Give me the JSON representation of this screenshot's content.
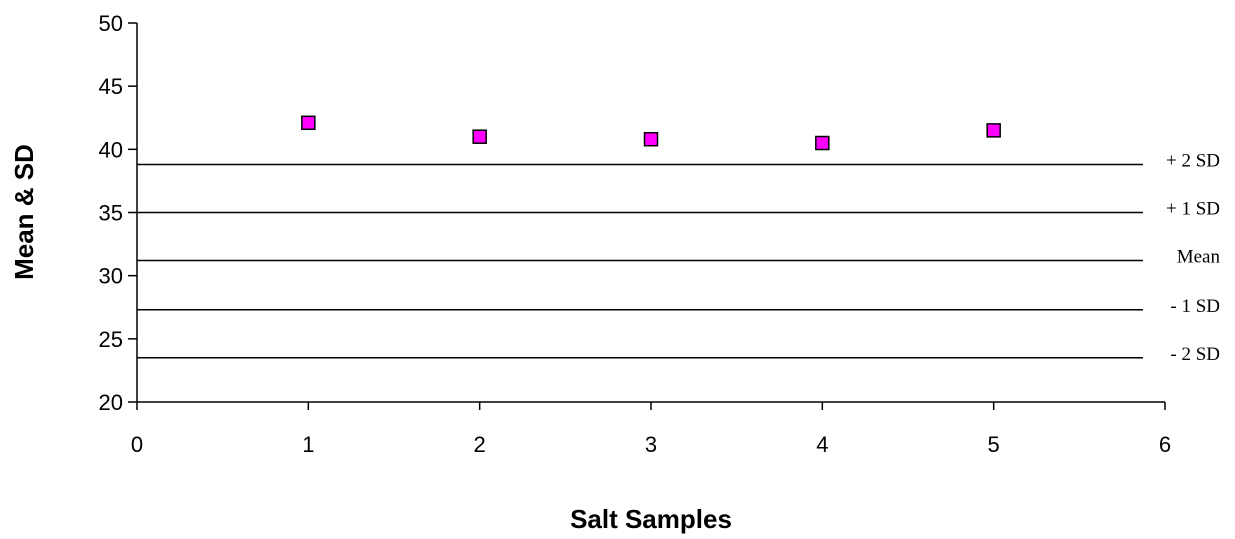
{
  "chart_data": {
    "type": "scatter",
    "xlabel": "Salt Samples",
    "ylabel": "Mean & SD",
    "xlim": [
      0,
      6
    ],
    "ylim": [
      20,
      50
    ],
    "x_ticks": [
      0,
      1,
      2,
      3,
      4,
      5,
      6
    ],
    "y_ticks": [
      20,
      25,
      30,
      35,
      40,
      45,
      50
    ],
    "grid": false,
    "series": [
      {
        "x": [
          1,
          2,
          3,
          4,
          5
        ],
        "y": [
          42.1,
          41.0,
          40.8,
          40.5,
          41.5
        ],
        "marker": "square",
        "color": "#ff00ff"
      }
    ],
    "reference_lines": [
      {
        "label": "+ 2 SD",
        "y": 38.8
      },
      {
        "label": "+ 1 SD",
        "y": 35.0
      },
      {
        "label": "Mean",
        "y": 31.2
      },
      {
        "label": "- 1 SD",
        "y": 27.3
      },
      {
        "label": "- 2 SD",
        "y": 23.5
      }
    ]
  }
}
